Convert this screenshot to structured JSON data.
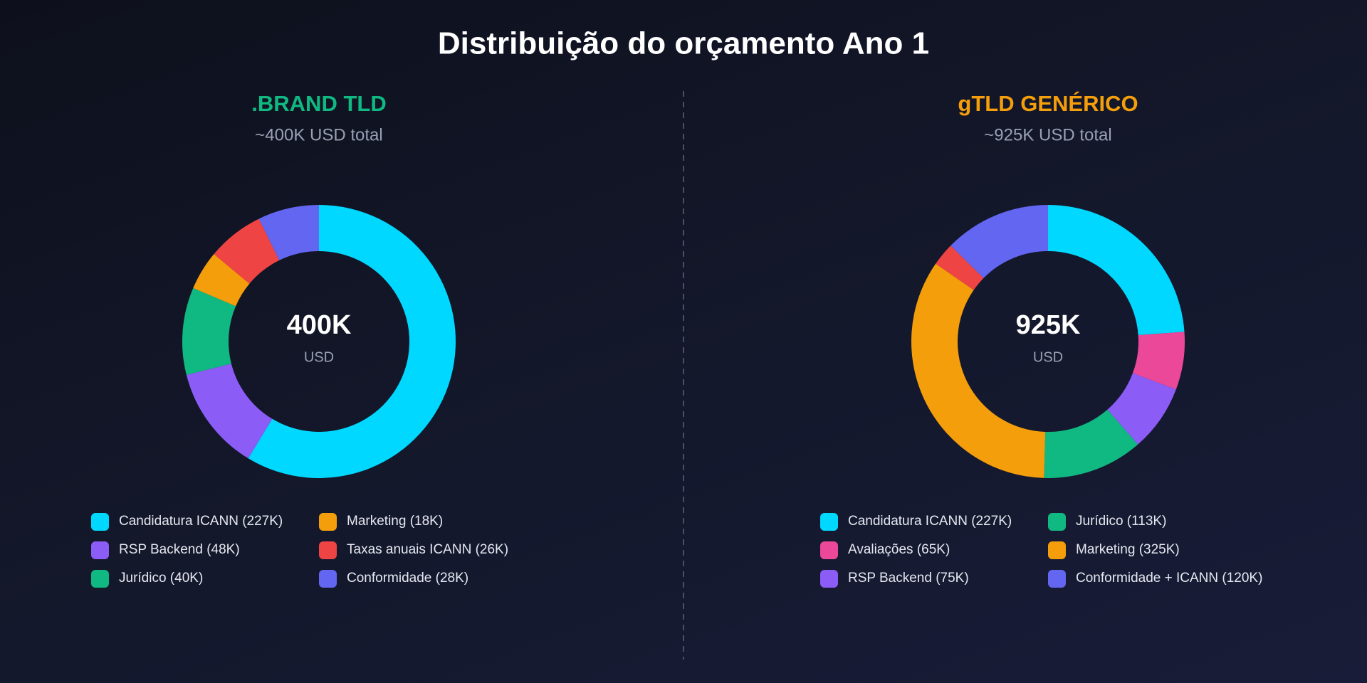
{
  "title": "Distribuição do orçamento Ano 1",
  "chart_data": [
    {
      "type": "donut",
      "title": ".BRAND TLD",
      "title_color": "#10b981",
      "subtitle": "~400K USD total",
      "center_value": "400K",
      "center_unit": "USD",
      "categories": [
        "Candidatura ICANN (227K)",
        "RSP Backend (48K)",
        "Jurídico (40K)",
        "Marketing (18K)",
        "Taxas anuais ICANN (26K)",
        "Conformidade (28K)"
      ],
      "values": [
        227,
        48,
        40,
        18,
        26,
        28
      ],
      "colors": [
        "#00d8ff",
        "#8b5cf6",
        "#10b981",
        "#f59e0b",
        "#ef4444",
        "#6366f1"
      ]
    },
    {
      "type": "donut",
      "title": "gTLD GENÉRICO",
      "title_color": "#f59e0b",
      "subtitle": "~925K USD total",
      "center_value": "925K",
      "center_unit": "USD",
      "categories": [
        "Candidatura ICANN (227K)",
        "Avaliações (65K)",
        "RSP Backend (75K)",
        "Jurídico (113K)",
        "Marketing (325K)",
        null,
        "Conformidade + ICANN (120K)"
      ],
      "values": [
        227,
        65,
        75,
        113,
        325,
        26,
        120
      ],
      "colors": [
        "#00d8ff",
        "#ec4899",
        "#8b5cf6",
        "#10b981",
        "#f59e0b",
        "#ef4444",
        "#6366f1"
      ]
    }
  ]
}
